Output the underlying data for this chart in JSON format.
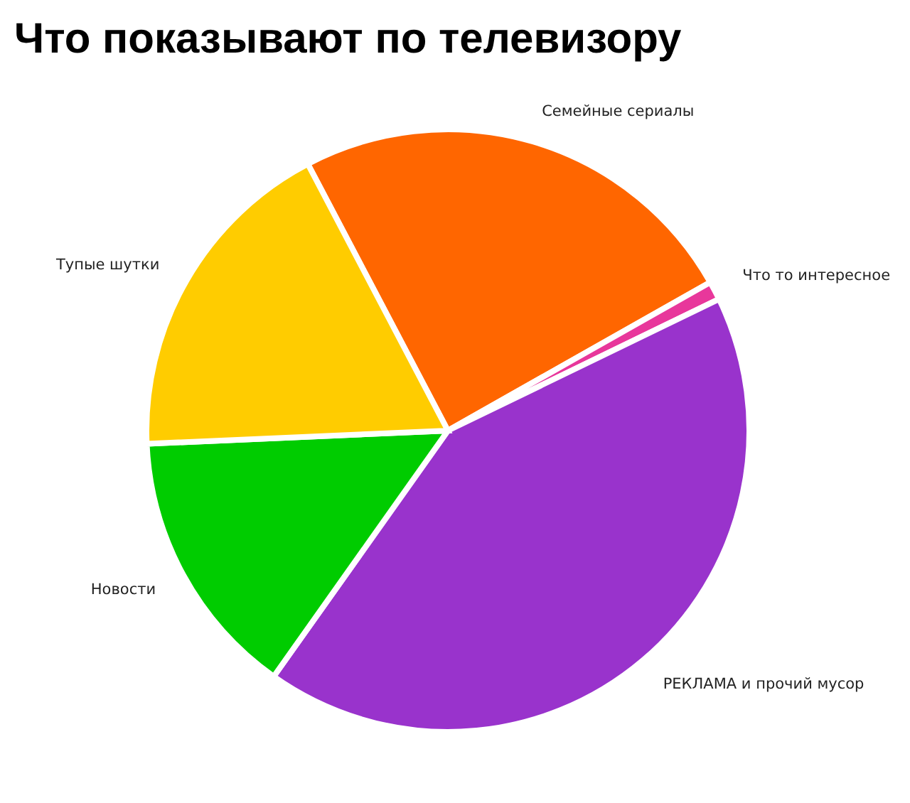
{
  "chart_data": {
    "type": "pie",
    "title": "Что показывают по телевизору",
    "categories": [
      "Семейные сериалы",
      "Что то интересное",
      "РЕКЛАМА и прочий мусор",
      "Новости",
      "Тупые шутки"
    ],
    "values": [
      24.5,
      1,
      42,
      14.5,
      18
    ],
    "colors": [
      "#ff6600",
      "#e8379b",
      "#9933cc",
      "#00cc00",
      "#ffcc00"
    ]
  }
}
